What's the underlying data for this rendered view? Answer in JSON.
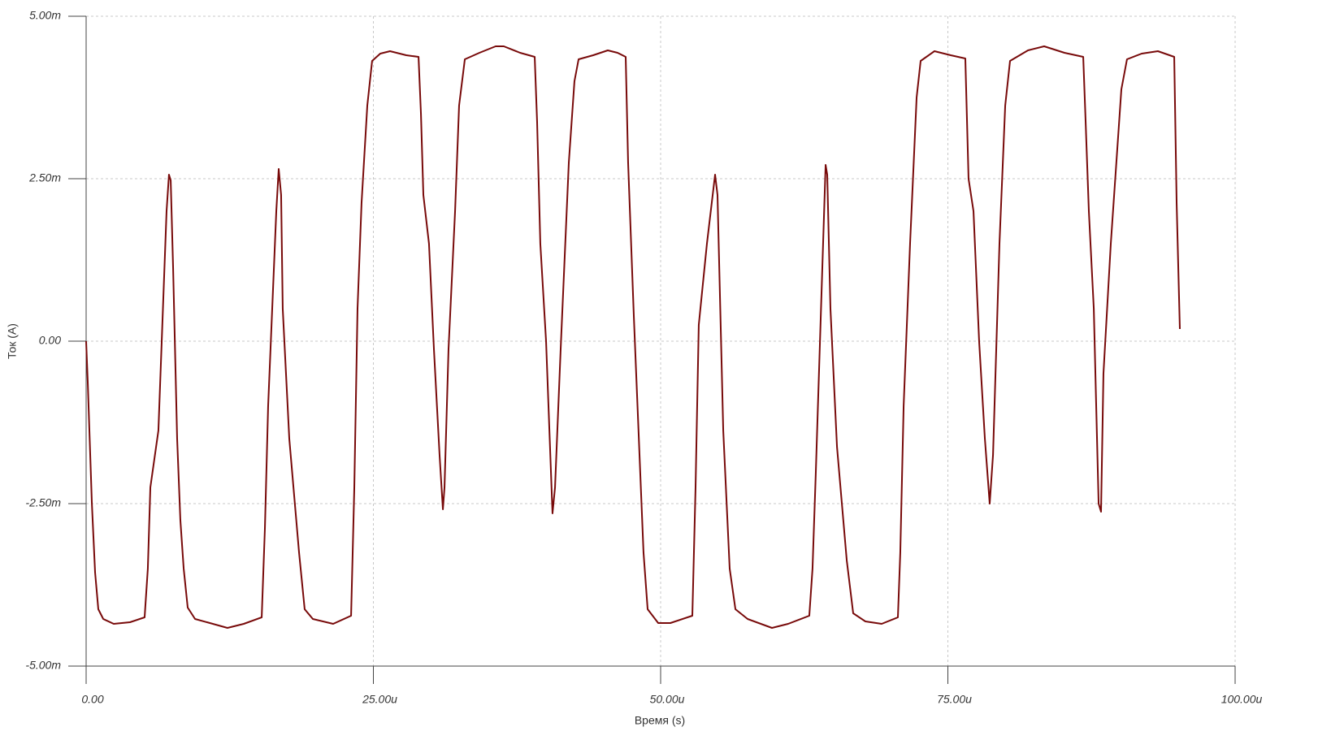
{
  "chart_data": {
    "type": "line",
    "xlabel": "Время (s)",
    "ylabel": "Ток (A)",
    "color": "#780a0a",
    "grid": true,
    "xlim": [
      0,
      0.0001
    ],
    "ylim": [
      -0.005,
      0.005
    ],
    "xticks": [
      {
        "value": 0,
        "label": "0.00"
      },
      {
        "value": 2.5e-05,
        "label": "25.00u"
      },
      {
        "value": 5e-05,
        "label": "50.00u"
      },
      {
        "value": 7.5e-05,
        "label": "75.00u"
      },
      {
        "value": 0.0001,
        "label": "100.00u"
      }
    ],
    "yticks": [
      {
        "value": -0.005,
        "label": "-5.00m"
      },
      {
        "value": -0.0025,
        "label": "-2.50m"
      },
      {
        "value": 0,
        "label": "0.00"
      },
      {
        "value": 0.0025,
        "label": "2.50m"
      },
      {
        "value": 0.005,
        "label": "5.00m"
      }
    ],
    "x": [
      0,
      1.4e-07,
      5e-07,
      7.8e-07,
      1.06e-06,
      1.49e-06,
      2.4e-06,
      3.82e-06,
      5.09e-06,
      5.37e-06,
      5.59e-06,
      6.29e-06,
      7e-06,
      7.21e-06,
      7.36e-06,
      7.57e-06,
      7.92e-06,
      8.2e-06,
      8.49e-06,
      8.84e-06,
      9.48e-06,
      1.23e-05,
      1.372e-05,
      1.528e-05,
      1.556e-05,
      1.584e-05,
      1.655e-05,
      1.676e-05,
      1.697e-05,
      1.711e-05,
      1.768e-05,
      1.853e-05,
      1.902e-05,
      1.973e-05,
      2.15e-05,
      2.306e-05,
      2.334e-05,
      2.362e-05,
      2.397e-05,
      2.447e-05,
      2.489e-05,
      2.56e-05,
      2.645e-05,
      2.786e-05,
      2.893e-05,
      2.914e-05,
      2.935e-05,
      2.984e-05,
      3.027e-05,
      3.076e-05,
      3.105e-05,
      3.119e-05,
      3.154e-05,
      3.211e-05,
      3.246e-05,
      3.296e-05,
      3.423e-05,
      3.564e-05,
      3.635e-05,
      3.777e-05,
      3.904e-05,
      3.925e-05,
      3.953e-05,
      4.003e-05,
      4.059e-05,
      4.081e-05,
      4.13e-05,
      4.201e-05,
      4.25e-05,
      4.286e-05,
      4.413e-05,
      4.54e-05,
      4.625e-05,
      4.696e-05,
      4.717e-05,
      4.767e-05,
      4.851e-05,
      4.887e-05,
      4.979e-05,
      5.085e-05,
      5.276e-05,
      5.304e-05,
      5.332e-05,
      5.403e-05,
      5.474e-05,
      5.495e-05,
      5.545e-05,
      5.601e-05,
      5.651e-05,
      5.757e-05,
      5.969e-05,
      6.11e-05,
      6.294e-05,
      6.322e-05,
      6.351e-05,
      6.414e-05,
      6.436e-05,
      6.45e-05,
      6.478e-05,
      6.535e-05,
      6.62e-05,
      6.676e-05,
      6.782e-05,
      6.924e-05,
      7.065e-05,
      7.086e-05,
      7.115e-05,
      7.171e-05,
      7.228e-05,
      7.263e-05,
      7.383e-05,
      7.525e-05,
      7.652e-05,
      7.68e-05,
      7.723e-05,
      7.772e-05,
      7.822e-05,
      7.864e-05,
      7.893e-05,
      7.949e-05,
      7.999e-05,
      8.041e-05,
      8.197e-05,
      8.338e-05,
      8.515e-05,
      8.678e-05,
      8.699e-05,
      8.727e-05,
      8.77e-05,
      8.812e-05,
      8.833e-05,
      8.854e-05,
      8.918e-05,
      9.01e-05,
      9.059e-05,
      9.187e-05,
      9.328e-05,
      9.47e-05,
      9.491e-05,
      9.519e-05
    ],
    "values": [
      0,
      -0.000625,
      -0.0025,
      -0.00356,
      -0.004125,
      -0.004275,
      -0.00435,
      -0.004325,
      -0.00425,
      -0.0035,
      -0.00225,
      -0.001375,
      0.002,
      0.0025625,
      0.002475,
      0.001125,
      -0.0015,
      -0.00275,
      -0.0035,
      -0.0041,
      -0.004275,
      -0.0044125,
      -0.00435,
      -0.00425,
      -0.002875,
      -0.001,
      0.002,
      0.00265,
      0.00225,
      0.0005,
      -0.0015,
      -0.00325,
      -0.004125,
      -0.004275,
      -0.00435,
      -0.004225,
      -0.00225,
      0.0005,
      0.002125,
      0.003625,
      0.0043125,
      0.004425,
      0.0044625,
      0.0044,
      0.004375,
      0.0035,
      0.00225,
      0.0015,
      -0.000125,
      -0.00175,
      -0.0025875,
      -0.00225,
      -0.000125,
      0.002,
      0.003625,
      0.0043375,
      0.0044375,
      0.0045375,
      0.0045375,
      0.0044375,
      0.004375,
      0.003375,
      0.0015,
      0,
      -0.00265,
      -0.00225,
      -0.000125,
      0.00275,
      0.004,
      0.0043375,
      0.0044,
      0.004475,
      0.0044375,
      0.004375,
      0.00275,
      0.000375,
      -0.00325,
      -0.004125,
      -0.0043375,
      -0.0043375,
      -0.004225,
      -0.00225,
      0.00025,
      0.0015,
      0.0025625,
      0.00225,
      -0.001375,
      -0.0035,
      -0.004125,
      -0.004275,
      -0.0044125,
      -0.00435,
      -0.004225,
      -0.0035,
      -0.002,
      0.0015,
      0.0027125,
      0.0025625,
      0.0005,
      -0.001625,
      -0.003375,
      -0.0041875,
      -0.0043125,
      -0.00435,
      -0.00425,
      -0.00325,
      -0.001,
      0.0015,
      0.00375,
      0.0043125,
      0.0044625,
      0.0044,
      0.00435,
      0.0025,
      0.002,
      0,
      -0.0015,
      -0.0025,
      -0.00175,
      0.0015,
      0.003625,
      0.0043125,
      0.004475,
      0.0045375,
      0.0044375,
      0.004375,
      0.003375,
      0.002,
      0.0005,
      -0.0025,
      -0.002625,
      -0.0005,
      0.0015,
      0.003875,
      0.0043375,
      0.004425,
      0.0044625,
      0.004375,
      0.002125,
      0.0001875
    ]
  }
}
